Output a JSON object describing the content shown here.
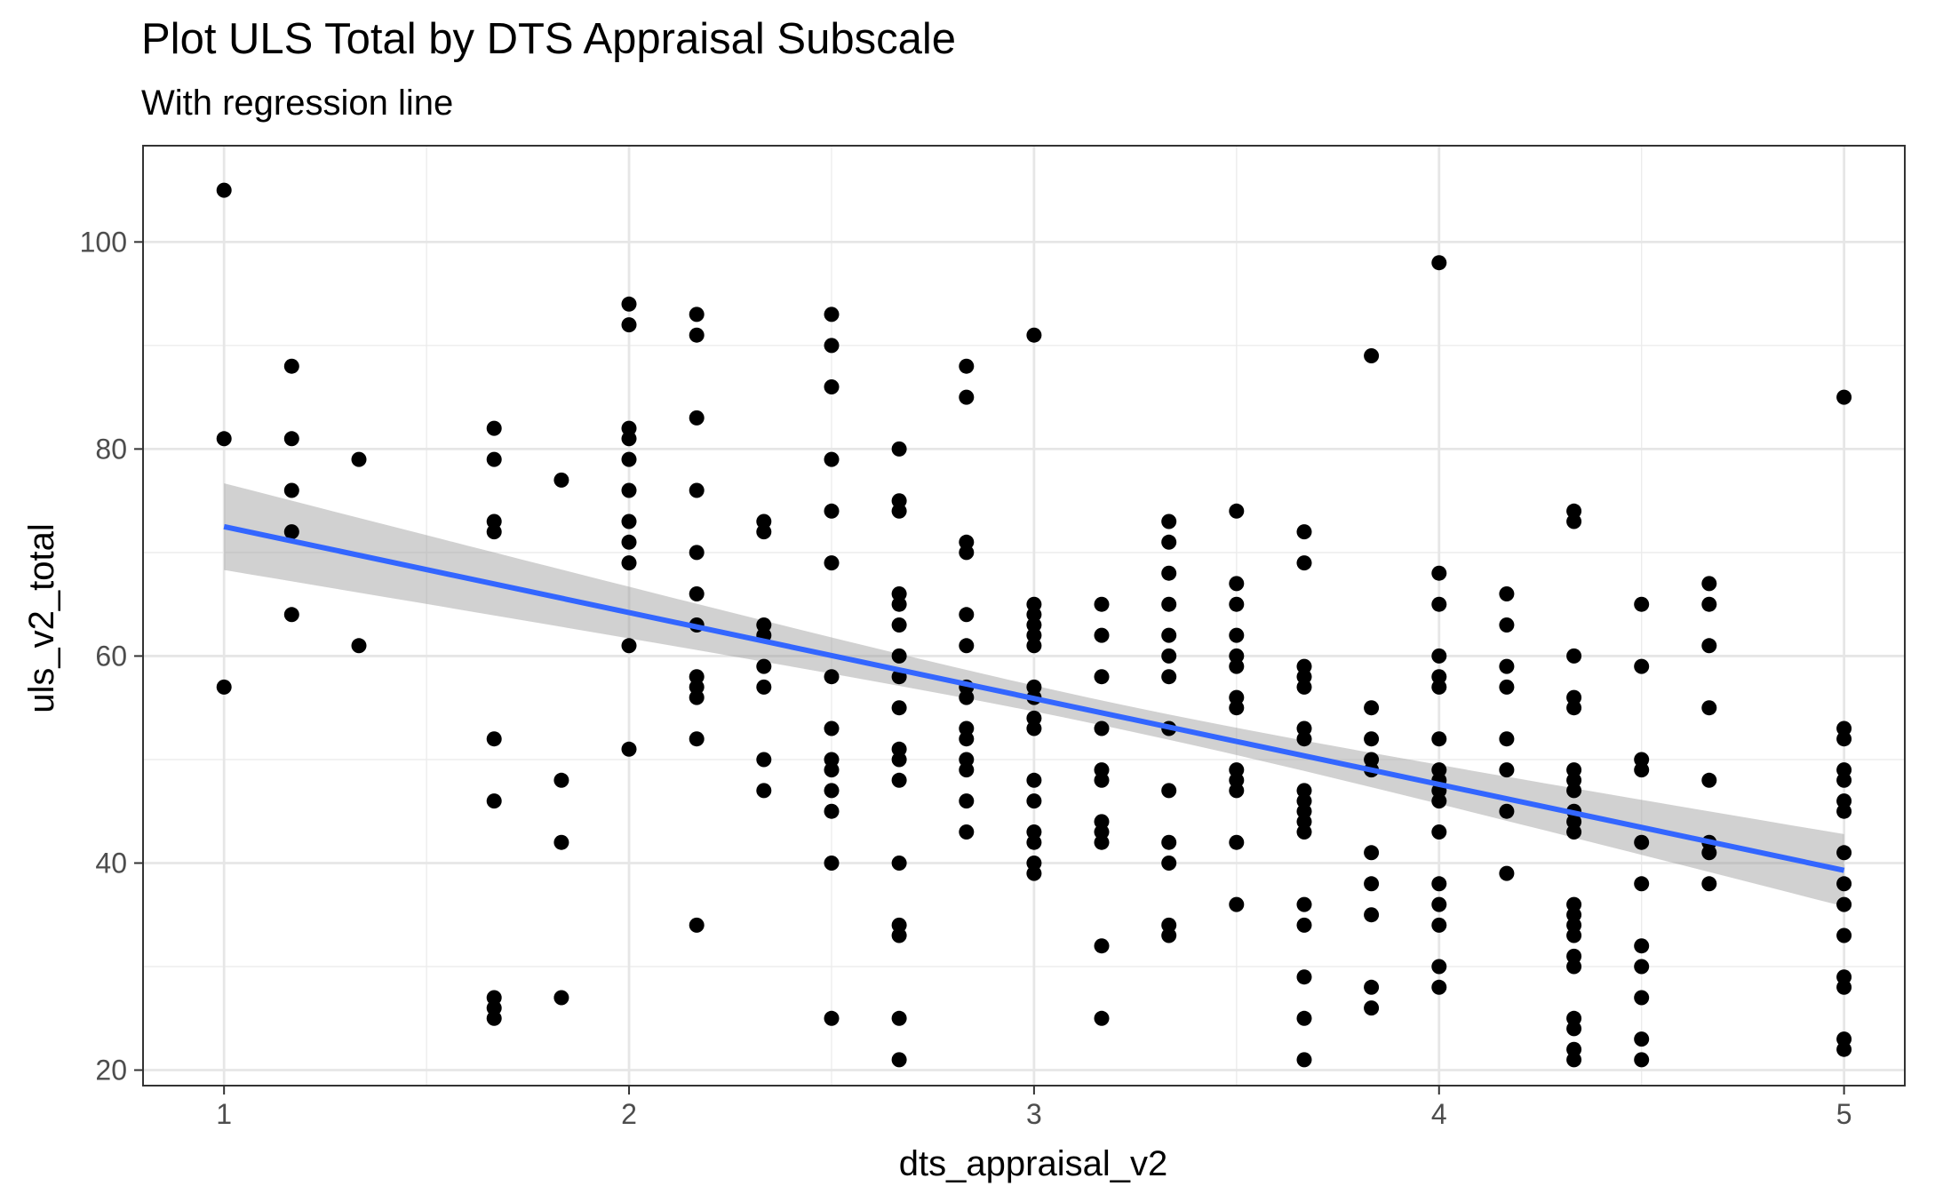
{
  "chart_data": {
    "type": "scatter",
    "title": "Plot ULS Total by DTS Appraisal Subscale",
    "subtitle": "With regression line",
    "xlabel": "dts_appraisal_v2",
    "ylabel": "uls_v2_total",
    "xlim": [
      0.8,
      5.15
    ],
    "ylim": [
      18.5,
      109.3
    ],
    "x_ticks": [
      1,
      2,
      3,
      4,
      5
    ],
    "x_tick_labels": [
      "1",
      "2",
      "3",
      "4",
      "5"
    ],
    "y_ticks": [
      20,
      40,
      60,
      80,
      100
    ],
    "y_tick_labels": [
      "20",
      "40",
      "60",
      "80",
      "100"
    ],
    "grid": true,
    "theme": "bw",
    "point_color": "#000000",
    "line_color": "#3366FF",
    "band_color": "#999999",
    "regression": {
      "method": "lm",
      "x": [
        1,
        5
      ],
      "y": [
        72.5,
        39.3
      ],
      "ci_lower": [
        68.2,
        35.9
      ],
      "ci_upper": [
        76.8,
        42.7
      ],
      "ci_mid_x": 3.2,
      "ci_mid_half_width": 1.2
    },
    "points": [
      [
        1,
        105
      ],
      [
        1,
        81
      ],
      [
        1,
        57
      ],
      [
        1.167,
        88
      ],
      [
        1.167,
        81
      ],
      [
        1.167,
        76
      ],
      [
        1.167,
        72
      ],
      [
        1.167,
        64
      ],
      [
        1.333,
        79
      ],
      [
        1.333,
        61
      ],
      [
        1.667,
        82
      ],
      [
        1.667,
        79
      ],
      [
        1.667,
        73
      ],
      [
        1.667,
        72
      ],
      [
        1.667,
        52
      ],
      [
        1.667,
        46
      ],
      [
        1.667,
        27
      ],
      [
        1.667,
        26
      ],
      [
        1.667,
        25
      ],
      [
        1.833,
        77
      ],
      [
        1.833,
        48
      ],
      [
        1.833,
        42
      ],
      [
        1.833,
        27
      ],
      [
        2,
        94
      ],
      [
        2,
        92
      ],
      [
        2,
        82
      ],
      [
        2,
        81
      ],
      [
        2,
        79
      ],
      [
        2,
        76
      ],
      [
        2,
        73
      ],
      [
        2,
        71
      ],
      [
        2,
        69
      ],
      [
        2,
        61
      ],
      [
        2,
        51
      ],
      [
        2.167,
        93
      ],
      [
        2.167,
        91
      ],
      [
        2.167,
        83
      ],
      [
        2.167,
        76
      ],
      [
        2.167,
        70
      ],
      [
        2.167,
        66
      ],
      [
        2.167,
        63
      ],
      [
        2.167,
        58
      ],
      [
        2.167,
        57
      ],
      [
        2.167,
        56
      ],
      [
        2.167,
        52
      ],
      [
        2.167,
        34
      ],
      [
        2.333,
        73
      ],
      [
        2.333,
        72
      ],
      [
        2.333,
        63
      ],
      [
        2.333,
        62
      ],
      [
        2.333,
        59
      ],
      [
        2.333,
        57
      ],
      [
        2.333,
        50
      ],
      [
        2.333,
        47
      ],
      [
        2.5,
        93
      ],
      [
        2.5,
        90
      ],
      [
        2.5,
        86
      ],
      [
        2.5,
        79
      ],
      [
        2.5,
        74
      ],
      [
        2.5,
        69
      ],
      [
        2.5,
        58
      ],
      [
        2.5,
        53
      ],
      [
        2.5,
        50
      ],
      [
        2.5,
        49
      ],
      [
        2.5,
        47
      ],
      [
        2.5,
        45
      ],
      [
        2.5,
        40
      ],
      [
        2.5,
        25
      ],
      [
        2.667,
        80
      ],
      [
        2.667,
        75
      ],
      [
        2.667,
        74
      ],
      [
        2.667,
        66
      ],
      [
        2.667,
        65
      ],
      [
        2.667,
        63
      ],
      [
        2.667,
        60
      ],
      [
        2.667,
        58
      ],
      [
        2.667,
        55
      ],
      [
        2.667,
        51
      ],
      [
        2.667,
        50
      ],
      [
        2.667,
        48
      ],
      [
        2.667,
        40
      ],
      [
        2.667,
        34
      ],
      [
        2.667,
        33
      ],
      [
        2.667,
        25
      ],
      [
        2.667,
        21
      ],
      [
        2.833,
        88
      ],
      [
        2.833,
        85
      ],
      [
        2.833,
        71
      ],
      [
        2.833,
        70
      ],
      [
        2.833,
        64
      ],
      [
        2.833,
        61
      ],
      [
        2.833,
        57
      ],
      [
        2.833,
        56
      ],
      [
        2.833,
        53
      ],
      [
        2.833,
        52
      ],
      [
        2.833,
        50
      ],
      [
        2.833,
        49
      ],
      [
        2.833,
        46
      ],
      [
        2.833,
        43
      ],
      [
        3,
        91
      ],
      [
        3,
        65
      ],
      [
        3,
        64
      ],
      [
        3,
        63
      ],
      [
        3,
        62
      ],
      [
        3,
        61
      ],
      [
        3,
        57
      ],
      [
        3,
        56
      ],
      [
        3,
        54
      ],
      [
        3,
        53
      ],
      [
        3,
        48
      ],
      [
        3,
        46
      ],
      [
        3,
        43
      ],
      [
        3,
        42
      ],
      [
        3,
        40
      ],
      [
        3,
        39
      ],
      [
        3.167,
        65
      ],
      [
        3.167,
        62
      ],
      [
        3.167,
        58
      ],
      [
        3.167,
        53
      ],
      [
        3.167,
        49
      ],
      [
        3.167,
        48
      ],
      [
        3.167,
        44
      ],
      [
        3.167,
        43
      ],
      [
        3.167,
        42
      ],
      [
        3.167,
        32
      ],
      [
        3.167,
        25
      ],
      [
        3.333,
        73
      ],
      [
        3.333,
        71
      ],
      [
        3.333,
        68
      ],
      [
        3.333,
        65
      ],
      [
        3.333,
        62
      ],
      [
        3.333,
        60
      ],
      [
        3.333,
        58
      ],
      [
        3.333,
        53
      ],
      [
        3.333,
        47
      ],
      [
        3.333,
        42
      ],
      [
        3.333,
        40
      ],
      [
        3.333,
        34
      ],
      [
        3.333,
        33
      ],
      [
        3.5,
        74
      ],
      [
        3.5,
        67
      ],
      [
        3.5,
        65
      ],
      [
        3.5,
        62
      ],
      [
        3.5,
        60
      ],
      [
        3.5,
        59
      ],
      [
        3.5,
        56
      ],
      [
        3.5,
        55
      ],
      [
        3.5,
        49
      ],
      [
        3.5,
        48
      ],
      [
        3.5,
        47
      ],
      [
        3.5,
        42
      ],
      [
        3.5,
        36
      ],
      [
        3.667,
        72
      ],
      [
        3.667,
        69
      ],
      [
        3.667,
        59
      ],
      [
        3.667,
        58
      ],
      [
        3.667,
        57
      ],
      [
        3.667,
        53
      ],
      [
        3.667,
        52
      ],
      [
        3.667,
        47
      ],
      [
        3.667,
        46
      ],
      [
        3.667,
        45
      ],
      [
        3.667,
        44
      ],
      [
        3.667,
        43
      ],
      [
        3.667,
        36
      ],
      [
        3.667,
        34
      ],
      [
        3.667,
        29
      ],
      [
        3.667,
        25
      ],
      [
        3.667,
        21
      ],
      [
        3.833,
        89
      ],
      [
        3.833,
        55
      ],
      [
        3.833,
        52
      ],
      [
        3.833,
        50
      ],
      [
        3.833,
        49
      ],
      [
        3.833,
        41
      ],
      [
        3.833,
        38
      ],
      [
        3.833,
        35
      ],
      [
        3.833,
        28
      ],
      [
        3.833,
        26
      ],
      [
        4,
        98
      ],
      [
        4,
        68
      ],
      [
        4,
        65
      ],
      [
        4,
        60
      ],
      [
        4,
        58
      ],
      [
        4,
        57
      ],
      [
        4,
        52
      ],
      [
        4,
        49
      ],
      [
        4,
        48
      ],
      [
        4,
        47
      ],
      [
        4,
        46
      ],
      [
        4,
        43
      ],
      [
        4,
        38
      ],
      [
        4,
        36
      ],
      [
        4,
        34
      ],
      [
        4,
        30
      ],
      [
        4,
        28
      ],
      [
        4.167,
        66
      ],
      [
        4.167,
        63
      ],
      [
        4.167,
        59
      ],
      [
        4.167,
        57
      ],
      [
        4.167,
        52
      ],
      [
        4.167,
        49
      ],
      [
        4.167,
        45
      ],
      [
        4.167,
        39
      ],
      [
        4.333,
        74
      ],
      [
        4.333,
        73
      ],
      [
        4.333,
        60
      ],
      [
        4.333,
        56
      ],
      [
        4.333,
        55
      ],
      [
        4.333,
        49
      ],
      [
        4.333,
        48
      ],
      [
        4.333,
        47
      ],
      [
        4.333,
        45
      ],
      [
        4.333,
        44
      ],
      [
        4.333,
        43
      ],
      [
        4.333,
        36
      ],
      [
        4.333,
        35
      ],
      [
        4.333,
        34
      ],
      [
        4.333,
        33
      ],
      [
        4.333,
        31
      ],
      [
        4.333,
        30
      ],
      [
        4.333,
        25
      ],
      [
        4.333,
        24
      ],
      [
        4.333,
        22
      ],
      [
        4.333,
        21
      ],
      [
        4.5,
        65
      ],
      [
        4.5,
        59
      ],
      [
        4.5,
        50
      ],
      [
        4.5,
        49
      ],
      [
        4.5,
        42
      ],
      [
        4.5,
        38
      ],
      [
        4.5,
        32
      ],
      [
        4.5,
        30
      ],
      [
        4.5,
        27
      ],
      [
        4.5,
        23
      ],
      [
        4.5,
        21
      ],
      [
        4.667,
        67
      ],
      [
        4.667,
        65
      ],
      [
        4.667,
        61
      ],
      [
        4.667,
        55
      ],
      [
        4.667,
        48
      ],
      [
        4.667,
        42
      ],
      [
        4.667,
        41
      ],
      [
        4.667,
        38
      ],
      [
        5,
        85
      ],
      [
        5,
        53
      ],
      [
        5,
        52
      ],
      [
        5,
        49
      ],
      [
        5,
        48
      ],
      [
        5,
        46
      ],
      [
        5,
        45
      ],
      [
        5,
        41
      ],
      [
        5,
        38
      ],
      [
        5,
        36
      ],
      [
        5,
        33
      ],
      [
        5,
        29
      ],
      [
        5,
        28
      ],
      [
        5,
        23
      ],
      [
        5,
        22
      ]
    ]
  }
}
